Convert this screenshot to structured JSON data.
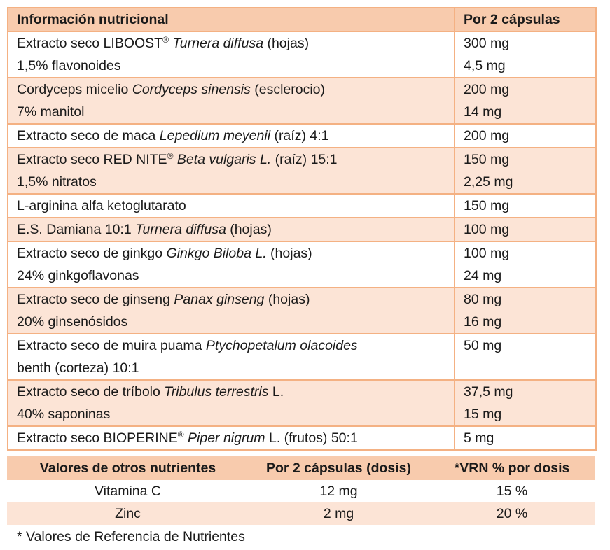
{
  "table": {
    "header": [
      "Información nutricional",
      "Por 2 cápsulas"
    ],
    "rows": [
      {
        "ingredient": [
          [
            {
              "text": "Extracto seco LIBOOST"
            },
            {
              "text": "®",
              "style": "sup"
            },
            {
              "text": " Turnera diffusa",
              "style": "italic"
            },
            {
              "text": " (hojas)"
            }
          ],
          [
            {
              "text": "1,5% flavonoides"
            }
          ]
        ],
        "amount": [
          "300 mg",
          "4,5 mg"
        ]
      },
      {
        "ingredient": [
          [
            {
              "text": "Cordyceps micelio "
            },
            {
              "text": "Cordyceps sinensis",
              "style": "italic"
            },
            {
              "text": " (esclerocio)"
            }
          ],
          [
            {
              "text": "7% manitol"
            }
          ]
        ],
        "amount": [
          "200 mg",
          "14 mg"
        ]
      },
      {
        "ingredient": [
          [
            {
              "text": "Extracto seco de maca "
            },
            {
              "text": "Lepedium meyenii",
              "style": "italic"
            },
            {
              "text": " (raíz) 4:1"
            }
          ]
        ],
        "amount": [
          "200 mg"
        ]
      },
      {
        "ingredient": [
          [
            {
              "text": "Extracto seco RED NITE"
            },
            {
              "text": "®",
              "style": "sup"
            },
            {
              "text": " Beta vulgaris L.",
              "style": "italic"
            },
            {
              "text": " (raíz) 15:1"
            }
          ],
          [
            {
              "text": "1,5% nitratos"
            }
          ]
        ],
        "amount": [
          "150 mg",
          "2,25 mg"
        ]
      },
      {
        "ingredient": [
          [
            {
              "text": "L-arginina alfa ketoglutarato"
            }
          ]
        ],
        "amount": [
          "150 mg"
        ]
      },
      {
        "ingredient": [
          [
            {
              "text": "E.S. Damiana 10:1 "
            },
            {
              "text": "Turnera diffusa",
              "style": "italic"
            },
            {
              "text": " (hojas)"
            }
          ]
        ],
        "amount": [
          "100 mg"
        ]
      },
      {
        "ingredient": [
          [
            {
              "text": "Extracto seco de ginkgo "
            },
            {
              "text": "Ginkgo Biloba L.",
              "style": "italic"
            },
            {
              "text": " (hojas)"
            }
          ],
          [
            {
              "text": "24% ginkgoflavonas"
            }
          ]
        ],
        "amount": [
          "100 mg",
          "24 mg"
        ]
      },
      {
        "ingredient": [
          [
            {
              "text": "Extracto seco de ginseng "
            },
            {
              "text": "Panax ginseng",
              "style": "italic"
            },
            {
              "text": " (hojas)"
            }
          ],
          [
            {
              "text": "20% ginsenósidos"
            }
          ]
        ],
        "amount": [
          "80 mg",
          "16 mg"
        ]
      },
      {
        "ingredient": [
          [
            {
              "text": "Extracto seco de muira puama "
            },
            {
              "text": "Ptychopetalum olacoides",
              "style": "italic"
            }
          ],
          [
            {
              "text": "benth (corteza) 10:1"
            }
          ]
        ],
        "amount": [
          "50 mg"
        ]
      },
      {
        "ingredient": [
          [
            {
              "text": "Extracto seco de tríbolo "
            },
            {
              "text": "Tribulus terrestris",
              "style": "italic"
            },
            {
              "text": " L."
            }
          ],
          [
            {
              "text": "40% saponinas"
            }
          ]
        ],
        "amount": [
          "37,5 mg",
          "15 mg"
        ]
      },
      {
        "ingredient": [
          [
            {
              "text": "Extracto seco BIOPERINE"
            },
            {
              "text": "®",
              "style": "sup"
            },
            {
              "text": " Piper nigrum",
              "style": "italic"
            },
            {
              "text": " L. (frutos) 50:1"
            }
          ]
        ],
        "amount": [
          "5 mg"
        ]
      }
    ]
  },
  "other_table": {
    "header": [
      "Valores de otros nutrientes",
      "Por 2 cápsulas (dosis)",
      "*VRN % por dosis"
    ],
    "rows": [
      [
        "Vitamina C",
        "12 mg",
        "15 %"
      ],
      [
        "Zinc",
        "2 mg",
        "20 %"
      ]
    ]
  },
  "footnote": "* Valores de Referencia de Nutrientes"
}
